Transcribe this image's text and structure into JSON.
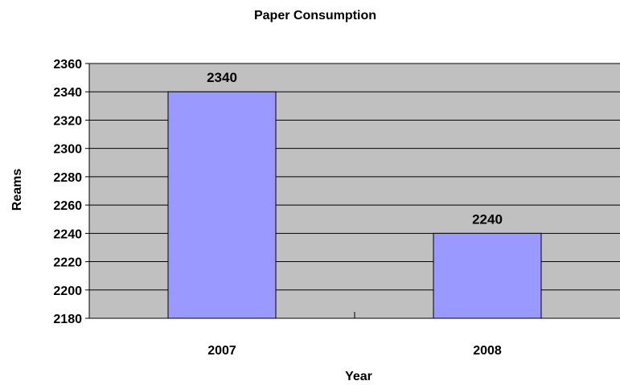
{
  "chart_data": {
    "type": "bar",
    "title": "Paper Consumption",
    "xlabel": "Year",
    "ylabel": "Reams",
    "categories": [
      "2007",
      "2008"
    ],
    "values": [
      2340,
      2240
    ],
    "ylim": [
      2180,
      2360
    ],
    "yticks": [
      2180,
      2200,
      2220,
      2240,
      2260,
      2280,
      2300,
      2320,
      2340,
      2360
    ],
    "data_labels": [
      "2340",
      "2240"
    ],
    "grid": true,
    "legend": "none",
    "colors": {
      "plot_background": "#c0c0c0",
      "bar_fill": "#9999ff",
      "bar_stroke": "#000000",
      "gridline": "#000000"
    }
  }
}
